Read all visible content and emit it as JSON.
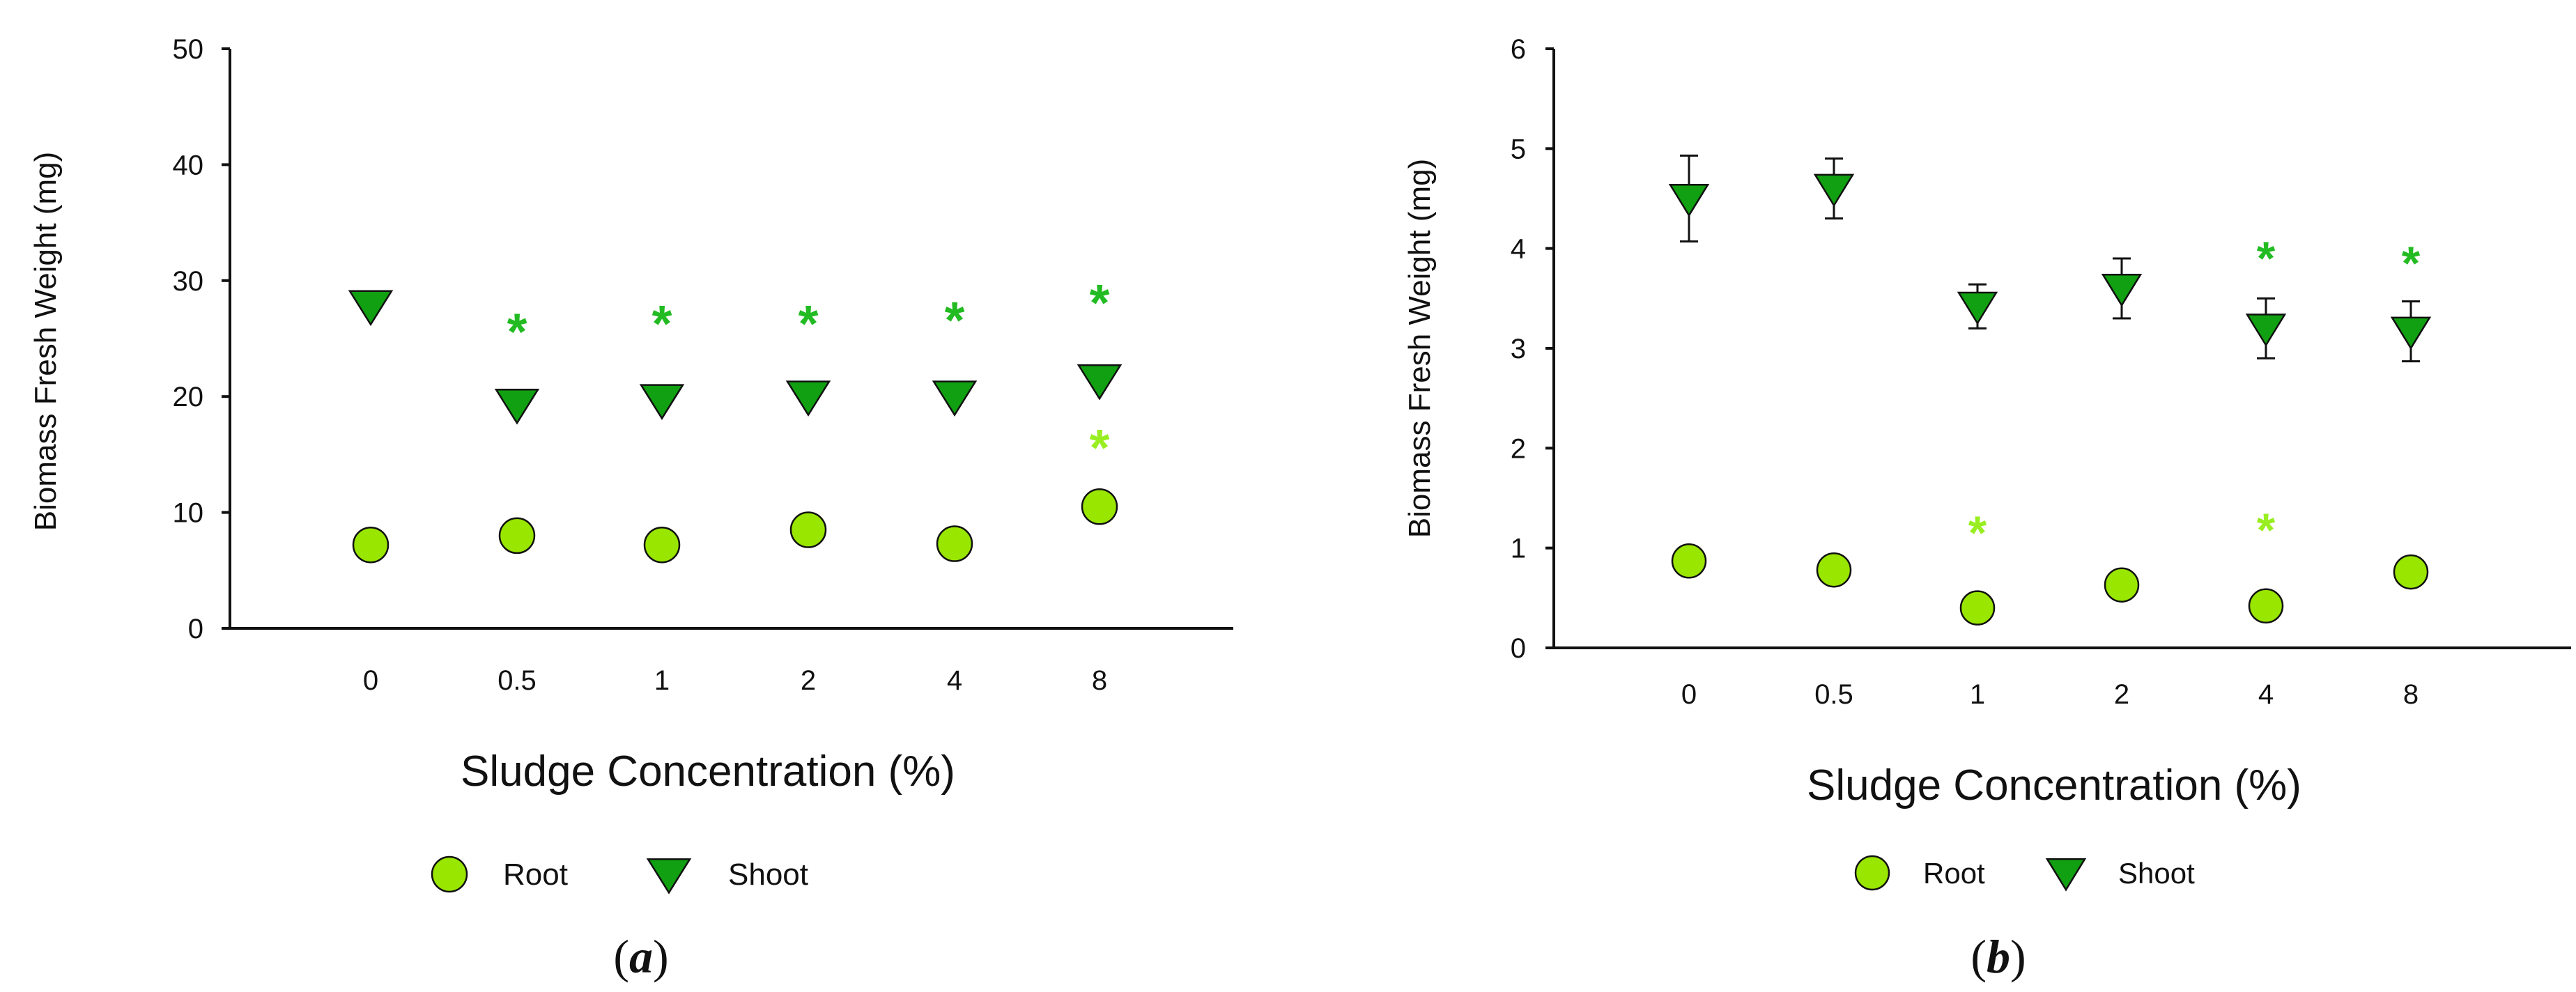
{
  "panels": [
    {
      "label_open": "(",
      "label_letter": "a",
      "label_close": ")"
    },
    {
      "label_open": "(",
      "label_letter": "b",
      "label_close": ")"
    }
  ],
  "colors": {
    "root_fill": "#99e600",
    "shoot_fill": "#11a011",
    "asterisk_shoot": "#22bb22",
    "asterisk_root": "#99ee22",
    "axis": "#111111"
  },
  "chart_data": [
    {
      "type": "scatter",
      "title": "",
      "xlabel": "Sludge Concentration (%)",
      "ylabel": "Biomass Fresh Weight (mg)",
      "categories": [
        "0",
        "0.5",
        "1",
        "2",
        "4",
        "8"
      ],
      "ylim": [
        0,
        50
      ],
      "yticks": [
        "0",
        "10",
        "20",
        "30",
        "40",
        "50"
      ],
      "legend": [
        "Root",
        "Shoot"
      ],
      "legend_position": "bottom",
      "series": [
        {
          "name": "Root",
          "marker": "circle",
          "values": [
            7.2,
            8.0,
            7.2,
            8.5,
            7.3,
            10.5
          ],
          "errors": [
            0,
            0,
            0,
            0,
            0,
            0
          ],
          "significant": [
            false,
            false,
            false,
            false,
            false,
            true
          ],
          "asterisk_values": [
            null,
            null,
            null,
            null,
            null,
            16.5
          ]
        },
        {
          "name": "Shoot",
          "marker": "triangle-down",
          "values": [
            27.8,
            19.3,
            19.7,
            20.0,
            20.0,
            21.4
          ],
          "errors": [
            1.0,
            0.8,
            0,
            0.6,
            0,
            0.6
          ],
          "significant": [
            false,
            true,
            true,
            true,
            true,
            true
          ],
          "asterisk_values": [
            null,
            26.5,
            27.2,
            27.2,
            27.5,
            29.0
          ]
        }
      ],
      "asterisk": "*"
    },
    {
      "type": "scatter",
      "title": "",
      "xlabel": "Sludge Concentration (%)",
      "ylabel": "Biomass Fresh Weight (mg)",
      "categories": [
        "0",
        "0.5",
        "1",
        "2",
        "4",
        "8"
      ],
      "ylim": [
        0,
        6
      ],
      "yticks": [
        "0",
        "1",
        "2",
        "3",
        "4",
        "5",
        "6"
      ],
      "legend": [
        "Root",
        "Shoot"
      ],
      "legend_position": "bottom",
      "series": [
        {
          "name": "Root",
          "marker": "circle",
          "values": [
            0.87,
            0.78,
            0.4,
            0.63,
            0.42,
            0.76
          ],
          "errors": [
            0,
            0,
            0,
            0,
            0,
            0
          ],
          "significant": [
            false,
            false,
            true,
            false,
            true,
            false
          ],
          "asterisk_values": [
            null,
            null,
            1.25,
            null,
            1.28,
            null
          ]
        },
        {
          "name": "Shoot",
          "marker": "triangle-down",
          "values": [
            4.5,
            4.6,
            3.42,
            3.6,
            3.2,
            3.17
          ],
          "errors": [
            0.43,
            0.3,
            0.22,
            0.3,
            0.3,
            0.3
          ],
          "significant": [
            false,
            false,
            false,
            false,
            true,
            true
          ],
          "asterisk_values": [
            null,
            null,
            null,
            null,
            4.0,
            3.95
          ]
        }
      ],
      "asterisk": "*"
    }
  ]
}
